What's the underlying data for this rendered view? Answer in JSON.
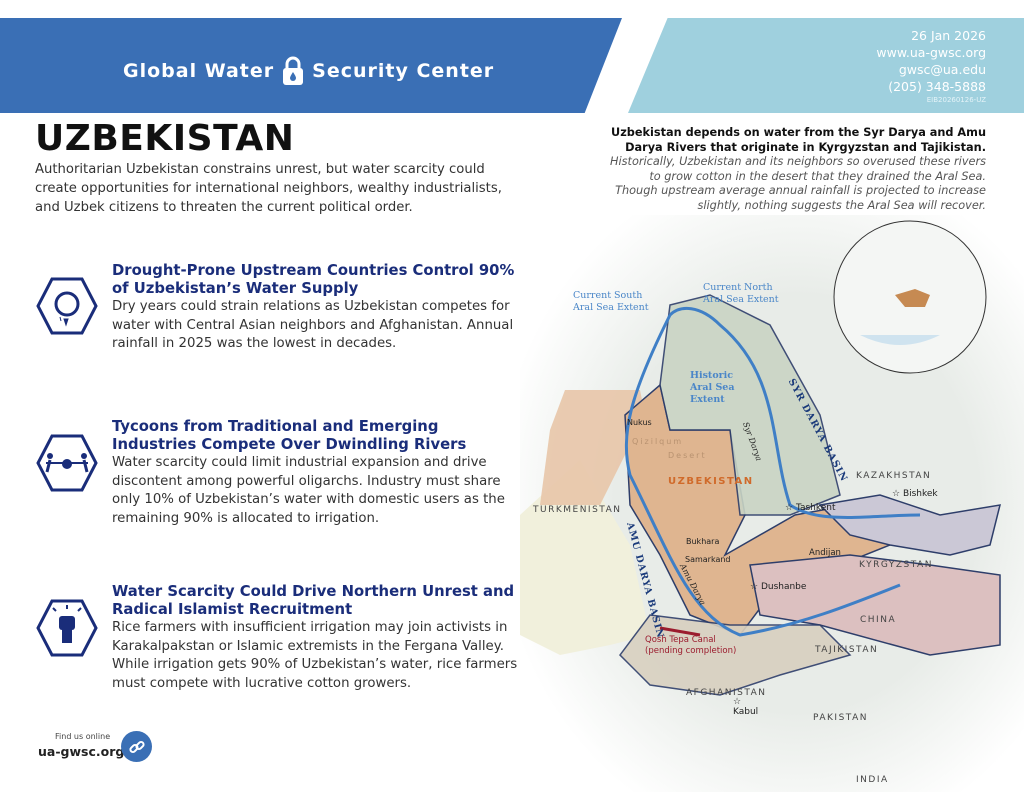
{
  "header": {
    "brand_left": "Global Water",
    "brand_right": "Security Center",
    "date": "26 Jan 2026",
    "website": "www.ua-gwsc.org",
    "email": "gwsc@ua.edu",
    "phone": "(205) 348-5888",
    "code": "EIB20260126-UZ",
    "colors": {
      "primary": "#3a6fb5",
      "secondary": "#9fd0de",
      "heading": "#1a2d7a"
    }
  },
  "title": "UZBEKISTAN",
  "intro": "Authoritarian Uzbekistan constrains unrest, but water scarcity could create opportunities for international neighbors, wealthy industrialists, and Uzbek citizens to threaten the current political order.",
  "summary": {
    "bold": "Uzbekistan depends on water from the Syr Darya and Amu Darya Rivers that originate in Kyrgyzstan and Tajikistan.",
    "italic": "Historically, Uzbekistan and its neighbors so overused these rivers to grow cotton in the desert that they drained the Aral Sea. Though upstream average annual rainfall is projected to increase slightly, nothing suggests the Aral Sea will recover."
  },
  "sections": [
    {
      "icon": "fist-water-drop-icon",
      "heading": "Drought-Prone Upstream Countries Control 90% of Uzbekistan’s Water Supply",
      "body": "Dry years could strain relations as Uzbekistan competes for water with Central Asian neighbors and Afghanistan. Annual rainfall in 2025 was the lowest in decades."
    },
    {
      "icon": "tug-of-war-water-icon",
      "heading": "Tycoons from Traditional and Emerging Industries Compete Over Dwindling Rivers",
      "body": "Water scarcity could limit industrial expansion and drive discontent among powerful oligarchs. Industry must share only 10% of Uzbekistan’s water with domestic users as the remaining 90% is allocated to irrigation."
    },
    {
      "icon": "raised-fist-icon",
      "heading": "Water Scarcity Could Drive Northern Unrest and Radical Islamist Recruitment",
      "body": "Rice farmers with insufficient irrigation may join activists in Karakalpakstan or Islamic extremists in the Fergana Valley. While irrigation gets 90% of Uzbekistan’s water, rice farmers must compete with lucrative cotton growers."
    }
  ],
  "footer": {
    "find": "Find us online",
    "site": "ua-gwsc.org",
    "icon": "link-icon"
  },
  "map": {
    "south_aral": [
      "Current South",
      "Aral Sea Extent"
    ],
    "north_aral": [
      "Current North",
      "Aral Sea Extent"
    ],
    "historic_aral": [
      "Historic",
      "Aral Sea",
      "Extent"
    ],
    "syr_basin": "Syr Darya Basin",
    "amu_basin": "Amu Darya Basin",
    "syr_river": "Syr Darya",
    "amu_river": "Amu Darya",
    "desert1": "Qizilqum",
    "desert2": "Desert",
    "canal": [
      "Qosh Tepa Canal",
      "(pending completion)"
    ],
    "countries": {
      "uzbekistan": "UZBEKISTAN",
      "turkmenistan": "TURKMENISTAN",
      "kazakhstan": "KAZAKHSTAN",
      "kyrgyzstan": "KYRGYZSTAN",
      "tajikistan": "TAJIKISTAN",
      "afghanistan": "AFGHANISTAN",
      "china": "CHINA",
      "pakistan": "PAKISTAN",
      "india": "INDIA"
    },
    "cities": {
      "nukus": "Nukus",
      "bukhara": "Bukhara",
      "samarkand": "Samarkand",
      "tashkent": "Tashkent",
      "andijan": "Andijan",
      "bishkek": "Bishkek",
      "dushanbe": "Dushanbe",
      "kabul": "Kabul"
    }
  }
}
